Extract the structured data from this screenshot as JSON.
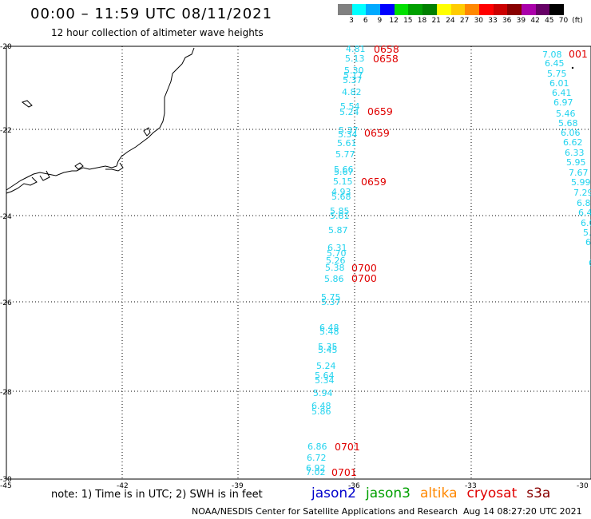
{
  "header": {
    "title": "00:00 – 11:59 UTC 08/11/2021",
    "subtitle": "12 hour collection of altimeter wave heights"
  },
  "scale": {
    "unit": "(ft)",
    "labels": [
      "3",
      "6",
      "9",
      "12",
      "15",
      "18",
      "21",
      "24",
      "27",
      "30",
      "33",
      "36",
      "39",
      "42",
      "45",
      "70"
    ],
    "colors": [
      "#808080",
      "#00ffff",
      "#00aaff",
      "#0000ff",
      "#00e000",
      "#00a000",
      "#008000",
      "#ffff00",
      "#ffcc00",
      "#ff8800",
      "#ff0000",
      "#cc0000",
      "#880000",
      "#aa00aa",
      "#660066",
      "#000000"
    ]
  },
  "axes": {
    "x_ticks": [
      "-45",
      "-42",
      "-39",
      "-36",
      "-33",
      "-30"
    ],
    "y_ticks": [
      "-20",
      "-22",
      "-24",
      "-26",
      "-28",
      "-30"
    ]
  },
  "track_main": {
    "values": [
      "4.81",
      "5.13",
      "5.30",
      "5.17",
      "5.37",
      "4.82",
      "5.54",
      "5.24",
      "5.37",
      "5.34",
      "5.61",
      "5.77",
      "5.66",
      "5.67",
      "5.15",
      "4.93",
      "5.68",
      "5.85",
      "5.81",
      "5.87",
      "6.31",
      "5.70",
      "5.26",
      "5.38",
      "5.86",
      "5.75",
      "5.37",
      "6.48",
      "5.48",
      "5.35",
      "5.45",
      "5.24",
      "5.64",
      "5.34",
      "5.94",
      "6.48",
      "5.86",
      "6.86",
      "6.72",
      "6.92",
      "7.02"
    ],
    "times": [
      "0658",
      "0658",
      "0659",
      "0659",
      "0659",
      "0700",
      "0700",
      "0701",
      "0701"
    ]
  },
  "track_east": {
    "values": [
      "7.08",
      "6.45",
      "5.75",
      "6.01",
      "6.41",
      "6.97",
      "5.46",
      "5.68",
      "6.06",
      "6.62",
      "6.33",
      "5.95",
      "7.67",
      "5.99",
      "7.29",
      "6.8",
      "6.4",
      "6.0",
      "5.",
      "6.",
      "6"
    ],
    "times": [
      "001"
    ]
  },
  "note": "note: 1) Time is in UTC; 2) SWH is in feet",
  "missions": [
    {
      "name": "jason2",
      "color": "#0000cc"
    },
    {
      "name": "jason3",
      "color": "#00a000"
    },
    {
      "name": "altika",
      "color": "#ff8800"
    },
    {
      "name": "cryosat",
      "color": "#e00000"
    },
    {
      "name": "s3a",
      "color": "#880000"
    }
  ],
  "footer": {
    "credit": "NOAA/NESDIS Center for Satellite Applications and Research",
    "timestamp": "Aug 14 08:27:20 UTC 2021"
  }
}
